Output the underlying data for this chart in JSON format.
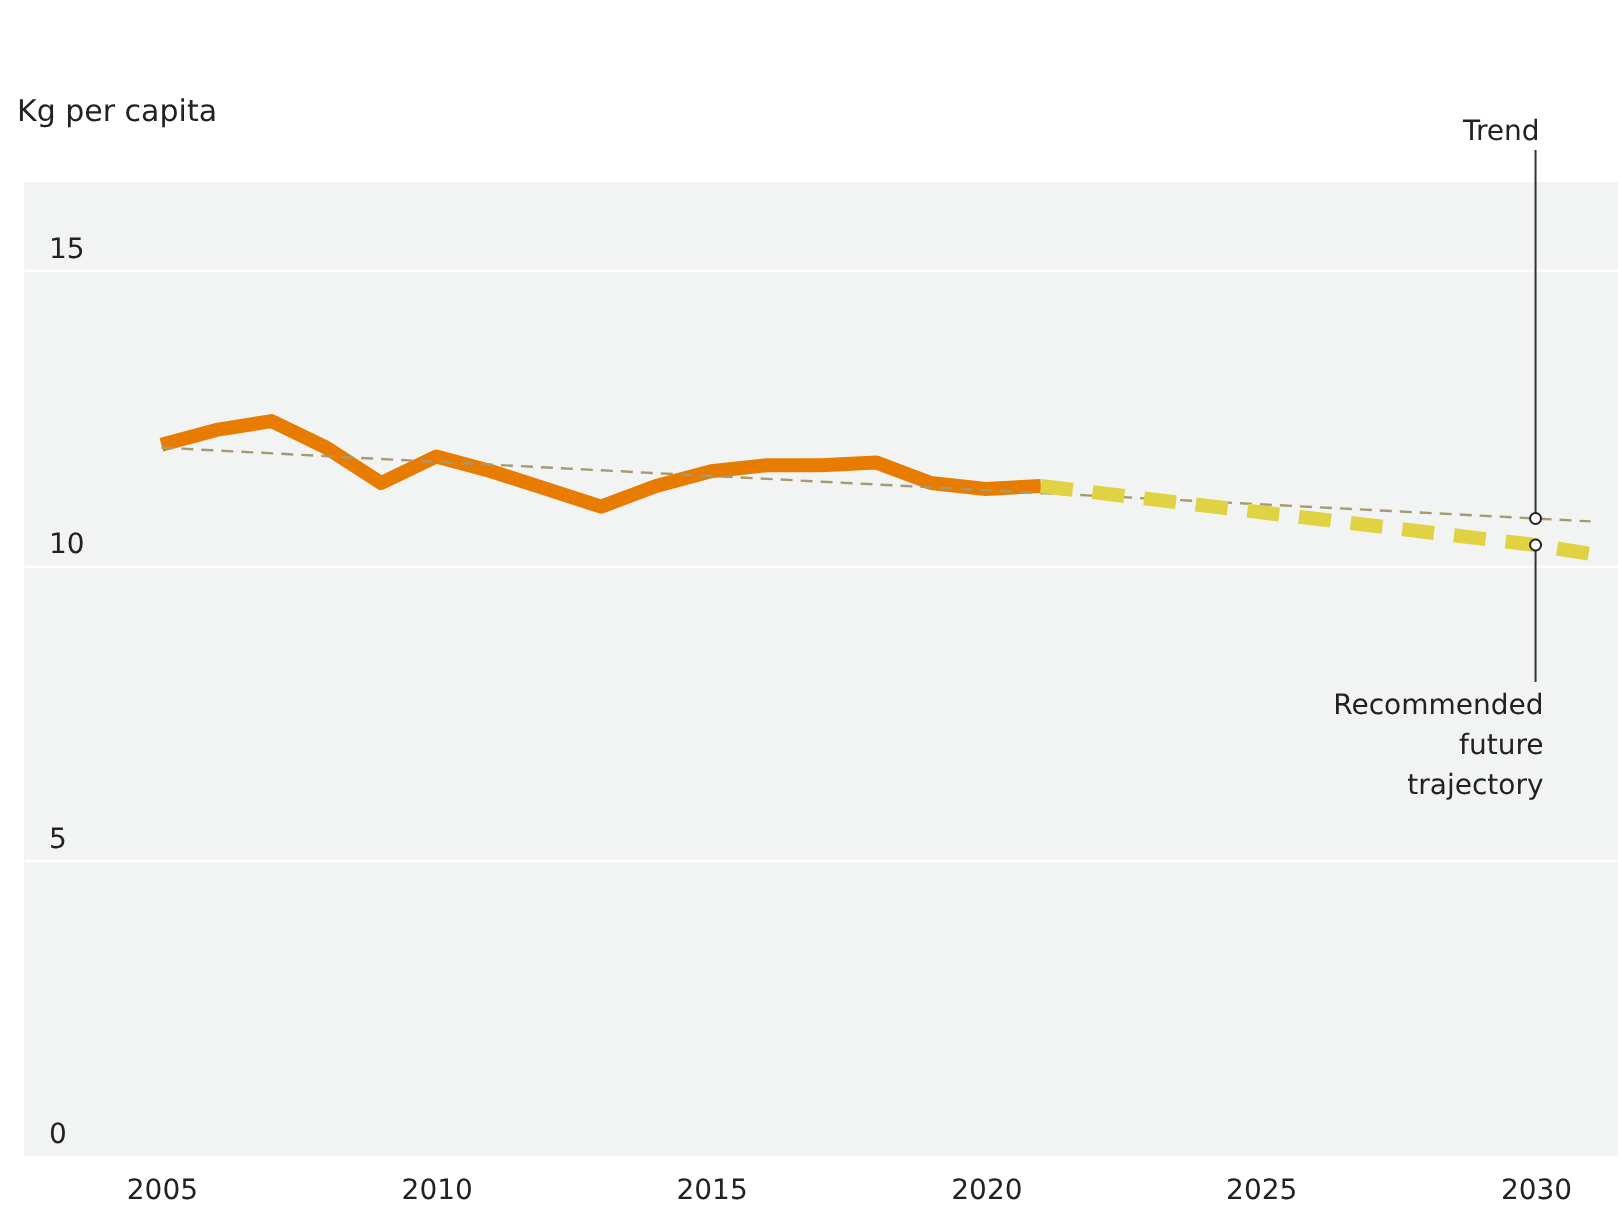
{
  "chart_data": {
    "type": "line",
    "ylabel": "Kg per capita",
    "x": [
      2005,
      2006,
      2007,
      2008,
      2009,
      2010,
      2011,
      2012,
      2013,
      2014,
      2015,
      2016,
      2017,
      2018,
      2019,
      2020,
      2021
    ],
    "series": [
      {
        "color": "#e87c00",
        "line_style": "solid",
        "values": [
          12.05,
          12.3,
          12.45,
          12.0,
          11.4,
          11.85,
          11.6,
          11.3,
          11.0,
          11.35,
          11.6,
          11.7,
          11.7,
          11.75,
          11.4,
          11.3,
          11.35
        ]
      },
      {
        "color": "#a89a70",
        "line_style": "dashed",
        "x": [
          2005,
          2030,
          2031
        ],
        "values": [
          12.0,
          10.8,
          10.75
        ]
      },
      {
        "color": "#e0d242",
        "line_style": "dashed",
        "x": [
          2021,
          2030,
          2031
        ],
        "values": [
          11.35,
          10.35,
          10.2
        ]
      }
    ],
    "annotations": [
      {
        "text": "Trend",
        "x": 2030,
        "y": 10.8
      },
      {
        "text": "Recommended future trajectory",
        "x": 2030,
        "y": 10.35
      }
    ],
    "xlim": [
      2002.5,
      2031.5
    ],
    "xticks": [
      2005,
      2010,
      2015,
      2020,
      2025,
      2030
    ],
    "ylim": [
      0,
      16.5
    ],
    "yticks": [
      0,
      5,
      10,
      15
    ],
    "grid": "y",
    "marker": "none"
  }
}
